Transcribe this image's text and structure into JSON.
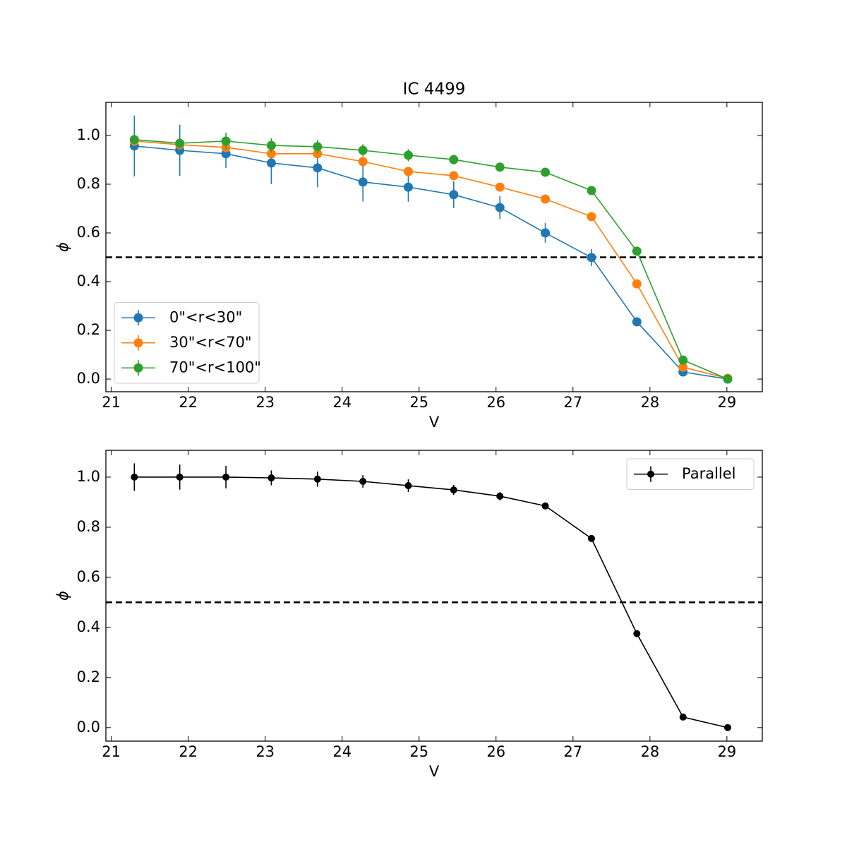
{
  "chart_data": [
    {
      "type": "line",
      "title": "IC 4499",
      "xlabel": "V",
      "ylabel": "ϕ",
      "x": [
        21.3,
        21.89,
        22.49,
        23.08,
        23.68,
        24.27,
        24.86,
        25.45,
        26.05,
        26.64,
        27.24,
        27.83,
        28.43,
        29.01
      ],
      "xlim": [
        20.93,
        29.46
      ],
      "xticks": [
        21,
        22,
        23,
        24,
        25,
        26,
        27,
        28,
        29
      ],
      "ylim": [
        -0.052,
        1.136
      ],
      "yticks": [
        {
          "value": 0,
          "label": "0.0"
        },
        0.2,
        0.4,
        0.6,
        0.8,
        {
          "value": 1,
          "label": "1.0"
        }
      ],
      "hline": 0.5,
      "legend": "lower left",
      "grid": false,
      "series": [
        {
          "name": "0\"<r<30\"",
          "color": "#1f77b4",
          "values": [
            0.957,
            0.939,
            0.925,
            0.887,
            0.867,
            0.809,
            0.788,
            0.757,
            0.704,
            0.6,
            0.499,
            0.235,
            0.029,
            0.0
          ],
          "errors": [
            0.125,
            0.105,
            0.058,
            0.087,
            0.08,
            0.08,
            0.06,
            0.055,
            0.047,
            0.04,
            0.035,
            0.015,
            0.01,
            0.005
          ]
        },
        {
          "name": "30\"<r<70\"",
          "color": "#ff7f0e",
          "values": [
            0.977,
            0.962,
            0.951,
            0.925,
            0.925,
            0.893,
            0.852,
            0.835,
            0.788,
            0.739,
            0.667,
            0.391,
            0.049,
            0.003
          ],
          "errors": [
            0.02,
            0.02,
            0.02,
            0.018,
            0.018,
            0.017,
            0.016,
            0.015,
            0.014,
            0.013,
            0.012,
            0.01,
            0.008,
            0.005
          ]
        },
        {
          "name": "70\"<r<100\"",
          "color": "#2ca02c",
          "values": [
            0.983,
            0.968,
            0.977,
            0.959,
            0.954,
            0.939,
            0.919,
            0.901,
            0.87,
            0.849,
            0.774,
            0.525,
            0.078,
            0.0
          ],
          "errors": [
            0.02,
            0.02,
            0.035,
            0.03,
            0.028,
            0.025,
            0.025,
            0.02,
            0.015,
            0.013,
            0.012,
            0.01,
            0.008,
            0.005
          ]
        }
      ]
    },
    {
      "type": "line",
      "xlabel": "V",
      "ylabel": "ϕ",
      "x": [
        21.3,
        21.89,
        22.49,
        23.08,
        23.68,
        24.27,
        24.86,
        25.45,
        26.05,
        26.64,
        27.24,
        27.83,
        28.43,
        29.01
      ],
      "xlim": [
        20.93,
        29.46
      ],
      "xticks": [
        21,
        22,
        23,
        24,
        25,
        26,
        27,
        28,
        29
      ],
      "ylim": [
        -0.054,
        1.107
      ],
      "yticks": [
        {
          "value": 0,
          "label": "0.0"
        },
        0.2,
        0.4,
        0.6,
        0.8,
        {
          "value": 1,
          "label": "1.0"
        }
      ],
      "hline": 0.5,
      "legend": "upper right",
      "grid": false,
      "series": [
        {
          "name": "Parallel",
          "color": "#000000",
          "values": [
            1.0,
            1.0,
            1.0,
            0.997,
            0.992,
            0.983,
            0.966,
            0.949,
            0.924,
            0.885,
            0.755,
            0.375,
            0.042,
            0.0
          ],
          "errors": [
            0.055,
            0.05,
            0.045,
            0.03,
            0.03,
            0.025,
            0.025,
            0.02,
            0.017,
            0.013,
            0.01,
            0.01,
            0.005,
            0.003
          ]
        }
      ]
    }
  ]
}
